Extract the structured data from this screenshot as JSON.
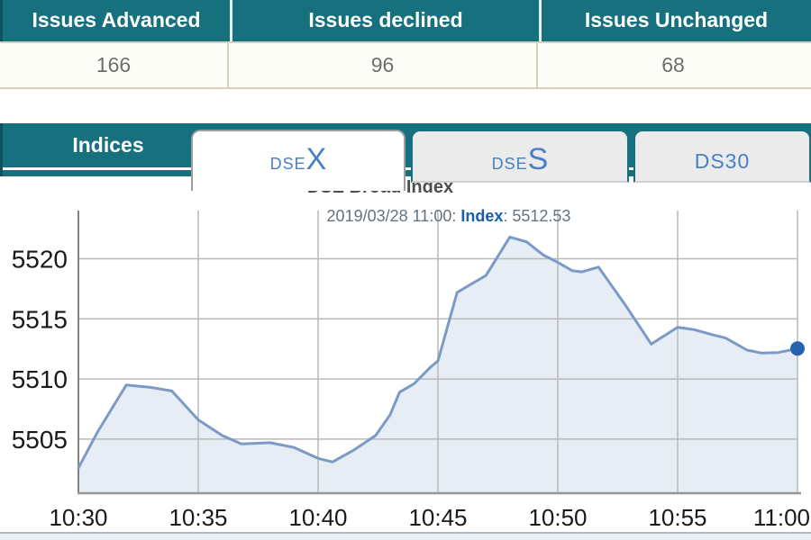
{
  "summary": {
    "columns": [
      {
        "header": "Issues Advanced",
        "value": "166"
      },
      {
        "header": "Issues declined",
        "value": "96"
      },
      {
        "header": "Issues Unchanged",
        "value": "68"
      }
    ]
  },
  "nav": {
    "panel_label": "Indices"
  },
  "tabs": [
    {
      "small": "DSE",
      "big": "X"
    },
    {
      "small": "DSE",
      "big": "S"
    },
    {
      "label": "DS30"
    }
  ],
  "chart_data": {
    "type": "area",
    "title": "DSE Broad Index",
    "subtitle_prefix": "2019/03/28 11:00: ",
    "subtitle_label": "Index",
    "subtitle_value": ": 5512.53",
    "x_unit": "minutes after 10:30",
    "xlim_minutes": [
      0,
      30
    ],
    "ylim": [
      5500.5,
      5524
    ],
    "grid": true,
    "legend": "none",
    "x_ticks": [
      {
        "t": 0,
        "label": "10:30"
      },
      {
        "t": 5,
        "label": "10:35"
      },
      {
        "t": 10,
        "label": "10:40"
      },
      {
        "t": 15,
        "label": "10:45"
      },
      {
        "t": 20,
        "label": "10:50"
      },
      {
        "t": 25,
        "label": "10:55"
      },
      {
        "t": 30,
        "label": "11:00"
      }
    ],
    "y_ticks": [
      {
        "v": 5505,
        "label": "5505"
      },
      {
        "v": 5510,
        "label": "5510"
      },
      {
        "v": 5515,
        "label": "5515"
      },
      {
        "v": 5520,
        "label": "5520"
      }
    ],
    "points": [
      [
        0,
        5502.6
      ],
      [
        0.8,
        5505.6
      ],
      [
        2,
        5509.5
      ],
      [
        3,
        5509.3
      ],
      [
        3.9,
        5509.0
      ],
      [
        5,
        5506.6
      ],
      [
        6,
        5505.3
      ],
      [
        6.8,
        5504.6
      ],
      [
        8,
        5504.7
      ],
      [
        9,
        5504.3
      ],
      [
        10,
        5503.4
      ],
      [
        10.6,
        5503.1
      ],
      [
        11.5,
        5504.1
      ],
      [
        12.4,
        5505.3
      ],
      [
        13,
        5507.0
      ],
      [
        13.4,
        5508.9
      ],
      [
        14,
        5509.6
      ],
      [
        14.7,
        5511.0
      ],
      [
        15,
        5511.5
      ],
      [
        15.8,
        5517.2
      ],
      [
        16.4,
        5517.9
      ],
      [
        17,
        5518.6
      ],
      [
        18,
        5521.8
      ],
      [
        18.7,
        5521.4
      ],
      [
        19.4,
        5520.3
      ],
      [
        20,
        5519.7
      ],
      [
        20.6,
        5519.0
      ],
      [
        21,
        5518.9
      ],
      [
        21.7,
        5519.3
      ],
      [
        22.8,
        5516.2
      ],
      [
        23.9,
        5512.9
      ],
      [
        25,
        5514.3
      ],
      [
        25.7,
        5514.1
      ],
      [
        26.4,
        5513.7
      ],
      [
        27,
        5513.4
      ],
      [
        27.9,
        5512.4
      ],
      [
        28.5,
        5512.15
      ],
      [
        29.2,
        5512.2
      ],
      [
        30,
        5512.53
      ]
    ],
    "last_value": 5512.53,
    "line_color": "#7b9ac6",
    "fill_color": "#e7edf4",
    "marker_color": "#2663af",
    "grid_color": "#b9b9b9"
  },
  "colors": {
    "teal": "#17707e",
    "tab_text_blue": "#4880c4",
    "subtitle_index_blue": "#1b5dab"
  }
}
